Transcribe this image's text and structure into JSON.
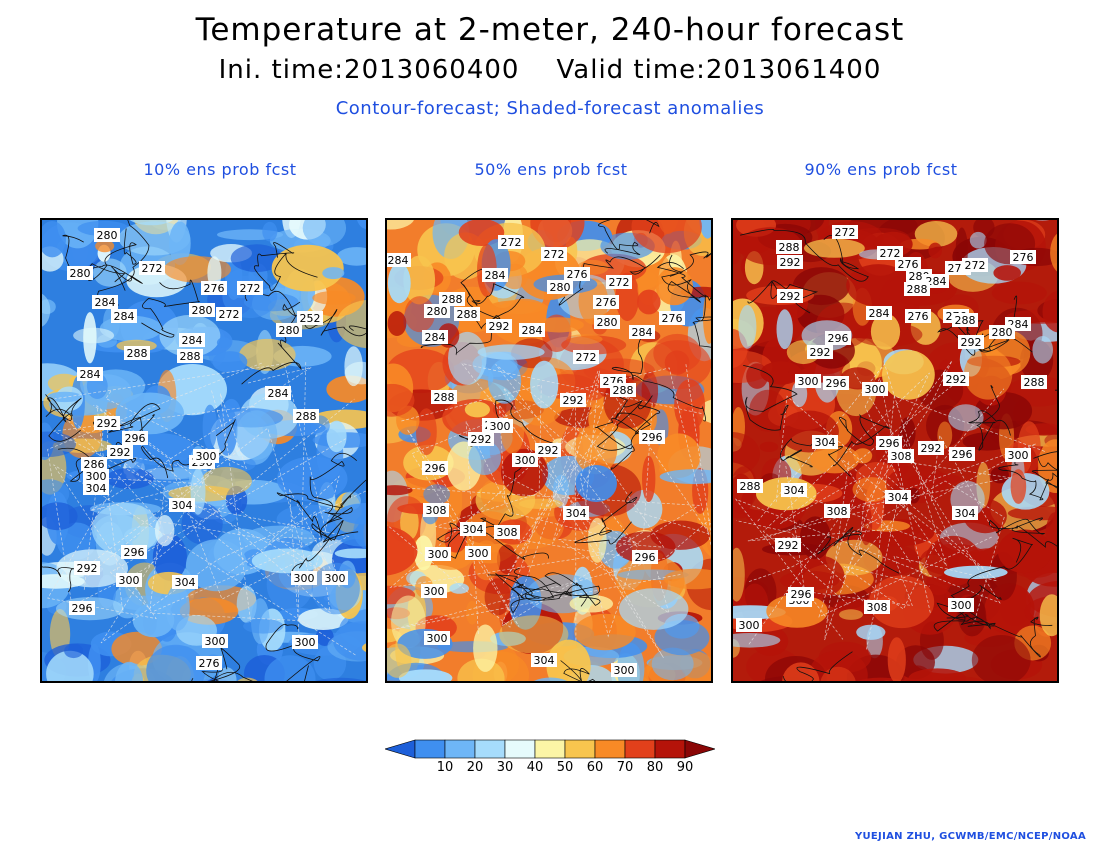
{
  "header": {
    "title": "Temperature at 2-meter, 240-hour forecast",
    "subtitle": "Ini. time:2013060400    Valid time:2013061400",
    "description": "Contour-forecast; Shaded-forecast anomalies"
  },
  "panels": [
    {
      "title": "10% ens prob fcst",
      "base_color": "#2e7fe0",
      "contour_labels": [
        "280",
        "280",
        "272",
        "276",
        "272",
        "280",
        "272",
        "252",
        "280",
        "284",
        "284",
        "284",
        "288",
        "284",
        "288",
        "284",
        "292",
        "288",
        "296",
        "292",
        "296",
        "286",
        "300",
        "304",
        "300",
        "304",
        "296",
        "292",
        "300",
        "296",
        "304",
        "300",
        "300",
        "300",
        "300",
        "276"
      ]
    },
    {
      "title": "50% ens prob fcst",
      "base_color": "#f27d2b",
      "contour_labels": [
        "284",
        "272",
        "272",
        "276",
        "272",
        "284",
        "280",
        "276",
        "288",
        "280",
        "288",
        "292",
        "284",
        "280",
        "284",
        "276",
        "284",
        "272",
        "276",
        "288",
        "292",
        "288",
        "296",
        "292",
        "292",
        "296",
        "300",
        "296",
        "304",
        "308",
        "304",
        "308",
        "300",
        "300",
        "296",
        "300",
        "300",
        "304",
        "300",
        "300"
      ]
    },
    {
      "title": "90% ens prob fcst",
      "base_color": "#b31b0b",
      "contour_labels": [
        "272",
        "288",
        "272",
        "276",
        "292",
        "276",
        "272",
        "280",
        "276",
        "292",
        "284",
        "288",
        "284",
        "276",
        "284",
        "276",
        "288",
        "280",
        "296",
        "292",
        "300",
        "296",
        "292",
        "288",
        "292",
        "300",
        "304",
        "296",
        "292",
        "296",
        "300",
        "308",
        "304",
        "308",
        "304",
        "288",
        "292",
        "300",
        "296",
        "308",
        "304",
        "300",
        "300"
      ]
    }
  ],
  "colorbar": {
    "ticks": [
      "10",
      "20",
      "30",
      "40",
      "50",
      "60",
      "70",
      "80",
      "90"
    ],
    "colors": [
      "#1d5fd9",
      "#3f8ff0",
      "#6eb6f7",
      "#a6dcfc",
      "#e6fbfc",
      "#fcf5a6",
      "#f8c54e",
      "#f88a26",
      "#e2401b",
      "#b51309",
      "#8a0606"
    ]
  },
  "credit": "YUEJIAN ZHU, GCWMB/EMC/NCEP/NOAA"
}
